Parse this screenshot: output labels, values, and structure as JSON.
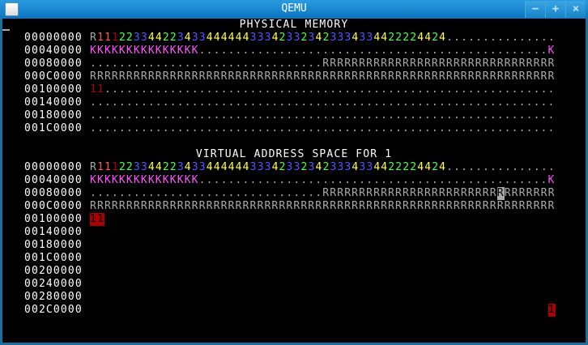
{
  "window": {
    "title": "QEMU",
    "minimize_label": "−",
    "maximize_label": "+",
    "close_label": "×"
  },
  "palette": {
    "gray": "#aaaaaa",
    "bred": "#ff5555",
    "dred": "#aa0000",
    "green": "#55ff55",
    "blue": "#5555ff",
    "yellow": "#ffff55",
    "magenta": "#ff55ff",
    "white": "#ffffff",
    "black": "#000000"
  },
  "physical": {
    "title": "PHYSICAL MEMORY",
    "rows": [
      {
        "addr": "00000000",
        "runs": [
          {
            "t": "R",
            "c": "gray"
          },
          {
            "t": "11",
            "c": "bred"
          },
          {
            "t": "1",
            "c": "dred"
          },
          {
            "t": "22",
            "c": "green"
          },
          {
            "t": "33",
            "c": "blue"
          },
          {
            "t": "44",
            "c": "yellow"
          },
          {
            "t": "22",
            "c": "green"
          },
          {
            "t": "3",
            "c": "blue"
          },
          {
            "t": "4",
            "c": "yellow"
          },
          {
            "t": "33",
            "c": "blue"
          },
          {
            "t": "444444",
            "c": "yellow"
          },
          {
            "t": "333",
            "c": "blue"
          },
          {
            "t": "4",
            "c": "yellow"
          },
          {
            "t": "2",
            "c": "green"
          },
          {
            "t": "33",
            "c": "blue"
          },
          {
            "t": "2",
            "c": "green"
          },
          {
            "t": "3",
            "c": "blue"
          },
          {
            "t": "4",
            "c": "yellow"
          },
          {
            "t": "2",
            "c": "green"
          },
          {
            "t": "333",
            "c": "blue"
          },
          {
            "t": "4",
            "c": "yellow"
          },
          {
            "t": "33",
            "c": "blue"
          },
          {
            "t": "44",
            "c": "yellow"
          },
          {
            "t": "2222",
            "c": "green"
          },
          {
            "t": "44",
            "c": "yellow"
          },
          {
            "t": "2",
            "c": "green"
          },
          {
            "t": "4",
            "c": "yellow"
          },
          {
            "t": "...............",
            "c": "gray"
          }
        ]
      },
      {
        "addr": "00040000",
        "runs": [
          {
            "t": "KKKKKKKKKKKKKKK",
            "c": "magenta"
          },
          {
            "t": "................................................",
            "c": "gray"
          },
          {
            "t": "K",
            "c": "magenta"
          }
        ]
      },
      {
        "addr": "00080000",
        "runs": [
          {
            "t": "................................",
            "c": "gray"
          },
          {
            "t": "RRRRRRRRRRRRRRRRRRRRRRRRRRRRRRRR",
            "c": "gray"
          }
        ]
      },
      {
        "addr": "000C0000",
        "runs": [
          {
            "t": "RRRRRRRRRRRRRRRRRRRRRRRRRRRRRRRRRRRRRRRRRRRRRRRRRRRRRRRRRRRRRRRR",
            "c": "gray"
          }
        ]
      },
      {
        "addr": "00100000",
        "runs": [
          {
            "t": "11",
            "c": "dred"
          },
          {
            "t": "..............................................................",
            "c": "gray"
          }
        ]
      },
      {
        "addr": "00140000",
        "runs": [
          {
            "t": "................................................................",
            "c": "gray"
          }
        ]
      },
      {
        "addr": "00180000",
        "runs": [
          {
            "t": "................................................................",
            "c": "gray"
          }
        ]
      },
      {
        "addr": "001C0000",
        "runs": [
          {
            "t": "................................................................",
            "c": "gray"
          }
        ]
      }
    ]
  },
  "virtual": {
    "title": "VIRTUAL ADDRESS SPACE FOR 1",
    "rows": [
      {
        "addr": "00000000",
        "runs": [
          {
            "t": "R",
            "c": "gray"
          },
          {
            "t": "11",
            "c": "bred"
          },
          {
            "t": "1",
            "c": "dred"
          },
          {
            "t": "22",
            "c": "green"
          },
          {
            "t": "33",
            "c": "blue"
          },
          {
            "t": "44",
            "c": "yellow"
          },
          {
            "t": "22",
            "c": "green"
          },
          {
            "t": "3",
            "c": "blue"
          },
          {
            "t": "4",
            "c": "yellow"
          },
          {
            "t": "33",
            "c": "blue"
          },
          {
            "t": "444444",
            "c": "yellow"
          },
          {
            "t": "333",
            "c": "blue"
          },
          {
            "t": "4",
            "c": "yellow"
          },
          {
            "t": "2",
            "c": "green"
          },
          {
            "t": "33",
            "c": "blue"
          },
          {
            "t": "2",
            "c": "green"
          },
          {
            "t": "3",
            "c": "blue"
          },
          {
            "t": "4",
            "c": "yellow"
          },
          {
            "t": "2",
            "c": "green"
          },
          {
            "t": "333",
            "c": "blue"
          },
          {
            "t": "4",
            "c": "yellow"
          },
          {
            "t": "33",
            "c": "blue"
          },
          {
            "t": "44",
            "c": "yellow"
          },
          {
            "t": "2222",
            "c": "green"
          },
          {
            "t": "44",
            "c": "yellow"
          },
          {
            "t": "2",
            "c": "green"
          },
          {
            "t": "4",
            "c": "yellow"
          },
          {
            "t": "...............",
            "c": "gray"
          }
        ]
      },
      {
        "addr": "00040000",
        "runs": [
          {
            "t": "KKKKKKKKKKKKKKK",
            "c": "magenta"
          },
          {
            "t": "................................................",
            "c": "gray"
          },
          {
            "t": "K",
            "c": "magenta"
          }
        ]
      },
      {
        "addr": "00080000",
        "runs": [
          {
            "t": "................................",
            "c": "gray"
          },
          {
            "t": "RRRRRRRRRRRRRRRRRRRRRRRR",
            "c": "gray"
          },
          {
            "t": "R",
            "c": "black",
            "bg": "gray"
          },
          {
            "t": "RRRRRRR",
            "c": "gray"
          }
        ]
      },
      {
        "addr": "000C0000",
        "runs": [
          {
            "t": "RRRRRRRRRRRRRRRRRRRRRRRRRRRRRRRRRRRRRRRRRRRRRRRRRRRRRRRRRRRRRRRR",
            "c": "gray"
          }
        ]
      },
      {
        "addr": "00100000",
        "runs": [
          {
            "t": "11",
            "c": "black",
            "bg": "dred"
          }
        ]
      },
      {
        "addr": "00140000",
        "runs": []
      },
      {
        "addr": "00180000",
        "runs": []
      },
      {
        "addr": "001C0000",
        "runs": []
      },
      {
        "addr": "00200000",
        "runs": []
      },
      {
        "addr": "00240000",
        "runs": []
      },
      {
        "addr": "00280000",
        "runs": []
      },
      {
        "addr": "002C0000",
        "runs": [
          {
            "t": "                                                               ",
            "c": "gray"
          },
          {
            "t": "1",
            "c": "black",
            "bg": "dred"
          }
        ]
      }
    ]
  }
}
